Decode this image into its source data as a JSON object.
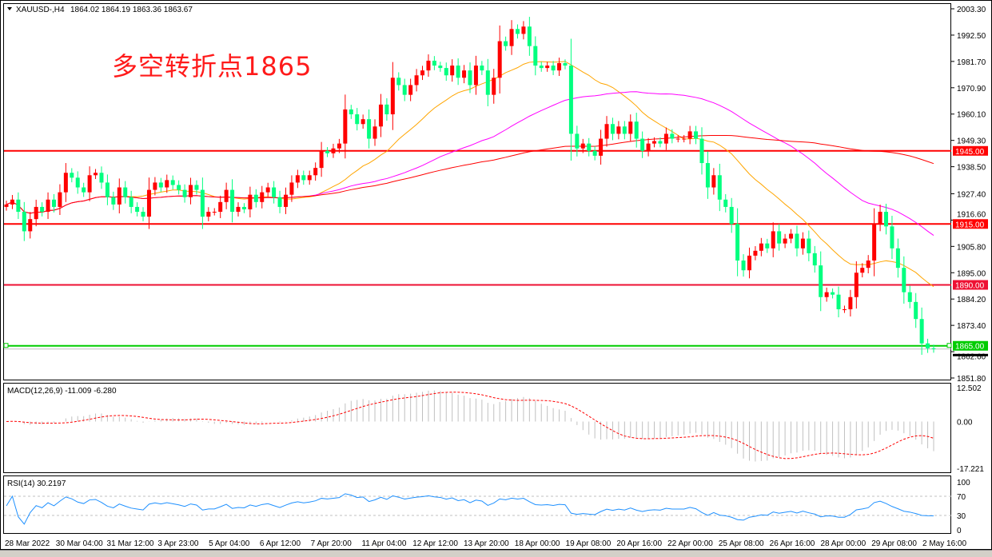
{
  "header": {
    "symbol": "XAUUSD-,H4",
    "ohlc": "1864.02 1864.19 1863.36 1863.67"
  },
  "annotation": "多空转折点1865",
  "colors": {
    "bull": "#ff0000",
    "bear": "#00ff7f",
    "ma_fast": "#ffa500",
    "ma_mid": "#ff00ff",
    "ma_slow": "#ff0000",
    "rsi": "#1e90ff",
    "macd_hist": "#c0c0c0",
    "macd_signal": "#ff0000"
  },
  "chart_data": {
    "type": "candlestick",
    "price_ticks": [
      "2003.30",
      "1992.50",
      "1981.70",
      "1970.90",
      "1960.10",
      "1949.30",
      "1938.50",
      "1927.40",
      "1916.60",
      "1905.80",
      "1895.00",
      "1884.20",
      "1873.40",
      "1862.60",
      "1851.80"
    ],
    "ylim": [
      1851.8,
      2003.3
    ],
    "levels": [
      {
        "value": 1945.0,
        "label": "1945.00",
        "color": "#ff0000"
      },
      {
        "value": 1915.0,
        "label": "1915.00",
        "color": "#ff0000"
      },
      {
        "value": 1890.0,
        "label": "1890.00",
        "color": "#ee1133"
      },
      {
        "value": 1865.0,
        "label": "1865.00",
        "color": "#00cc00"
      }
    ],
    "bid": 1863.67,
    "time_labels": [
      "28 Mar 2022",
      "30 Mar 04:00",
      "31 Mar 12:00",
      "3 Apr 23:00",
      "5 Apr 04:00",
      "6 Apr 12:00",
      "7 Apr 20:00",
      "11 Apr 04:00",
      "12 Apr 12:00",
      "13 Apr 20:00",
      "18 Apr 00:00",
      "19 Apr 08:00",
      "20 Apr 16:00",
      "22 Apr 00:00",
      "25 Apr 08:00",
      "26 Apr 16:00",
      "28 Apr 00:00",
      "29 Apr 08:00",
      "2 May 16:00"
    ],
    "closes": [
      1923,
      1925,
      1920,
      1912,
      1917,
      1922,
      1920,
      1925,
      1922,
      1928,
      1936,
      1934,
      1930,
      1928,
      1935,
      1936,
      1932,
      1926,
      1923,
      1930,
      1926,
      1922,
      1920,
      1918,
      1929,
      1932,
      1930,
      1933,
      1931,
      1929,
      1926,
      1931,
      1929,
      1918,
      1920,
      1920,
      1924,
      1929,
      1920,
      1922,
      1921,
      1927,
      1924,
      1928,
      1930,
      1926,
      1922,
      1927,
      1932,
      1935,
      1933,
      1935,
      1938,
      1945,
      1944,
      1946,
      1948,
      1962,
      1960,
      1956,
      1958,
      1950,
      1955,
      1964,
      1960,
      1975,
      1972,
      1968,
      1972,
      1976,
      1978,
      1982,
      1980,
      1979,
      1976,
      1980,
      1975,
      1978,
      1972,
      1980,
      1978,
      1968,
      1975,
      1990,
      1988,
      1995,
      1993,
      1996,
      1988,
      1980,
      1979,
      1980,
      1978,
      1981,
      1980,
      1952,
      1946,
      1948,
      1945,
      1943,
      1950,
      1956,
      1952,
      1955,
      1952,
      1957,
      1950,
      1945,
      1948,
      1949,
      1948,
      1952,
      1950,
      1950,
      1950,
      1953,
      1950,
      1940,
      1930,
      1935,
      1925,
      1922,
      1915,
      1900,
      1896,
      1902,
      1904,
      1907,
      1905,
      1912,
      1907,
      1909,
      1911,
      1905,
      1909,
      1903,
      1898,
      1885,
      1887,
      1886,
      1880,
      1880,
      1885,
      1895,
      1897,
      1900,
      1915,
      1920,
      1914,
      1905,
      1897,
      1887,
      1883,
      1876,
      1866,
      1864,
      1863.67
    ],
    "macd": {
      "label": "MACD(12,26,9) -11.009 -6.280",
      "ticks": [
        "12.502",
        "0.00",
        "-17.221"
      ],
      "ylim": [
        -17.221,
        12.502
      ]
    },
    "rsi": {
      "label": "RSI(14) 30.2197",
      "ticks": [
        "100",
        "70",
        "30",
        "0"
      ],
      "ylim": [
        0,
        100
      ]
    }
  }
}
